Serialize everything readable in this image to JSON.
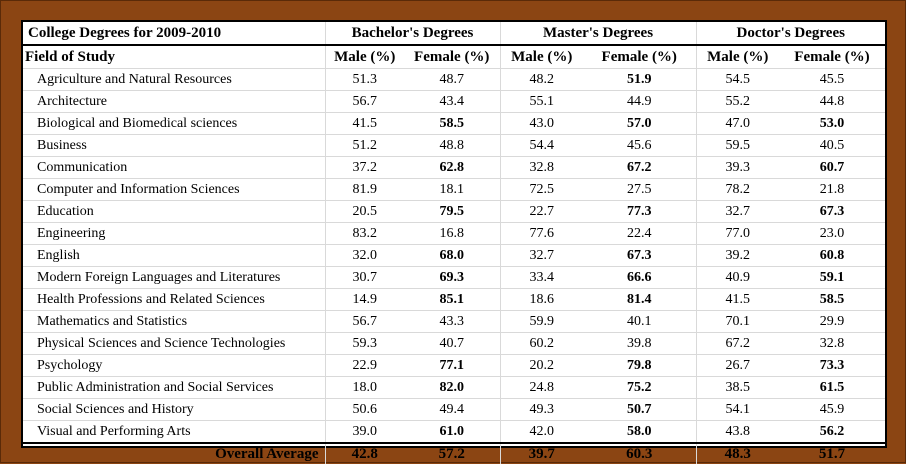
{
  "table": {
    "title": "College Degrees for 2009-2010",
    "groups": [
      "Bachelor's Degrees",
      "Master's Degrees",
      "Doctor's Degrees"
    ],
    "field_header": "Field of Study",
    "subheaders": [
      "Male (%)",
      "Female (%)",
      "Male (%)",
      "Female (%)",
      "Male (%)",
      "Female (%)"
    ],
    "rows": [
      {
        "field": "Agriculture and Natural Resources",
        "values": [
          "51.3",
          "48.7",
          "48.2",
          "51.9",
          "54.5",
          "45.5"
        ]
      },
      {
        "field": "Architecture",
        "values": [
          "56.7",
          "43.4",
          "55.1",
          "44.9",
          "55.2",
          "44.8"
        ]
      },
      {
        "field": "Biological and Biomedical sciences",
        "values": [
          "41.5",
          "58.5",
          "43.0",
          "57.0",
          "47.0",
          "53.0"
        ]
      },
      {
        "field": "Business",
        "values": [
          "51.2",
          "48.8",
          "54.4",
          "45.6",
          "59.5",
          "40.5"
        ]
      },
      {
        "field": "Communication",
        "values": [
          "37.2",
          "62.8",
          "32.8",
          "67.2",
          "39.3",
          "60.7"
        ]
      },
      {
        "field": "Computer and Information Sciences",
        "values": [
          "81.9",
          "18.1",
          "72.5",
          "27.5",
          "78.2",
          "21.8"
        ]
      },
      {
        "field": "Education",
        "values": [
          "20.5",
          "79.5",
          "22.7",
          "77.3",
          "32.7",
          "67.3"
        ]
      },
      {
        "field": "Engineering",
        "values": [
          "83.2",
          "16.8",
          "77.6",
          "22.4",
          "77.0",
          "23.0"
        ]
      },
      {
        "field": "English",
        "values": [
          "32.0",
          "68.0",
          "32.7",
          "67.3",
          "39.2",
          "60.8"
        ]
      },
      {
        "field": "Modern Foreign Languages and Literatures",
        "values": [
          "30.7",
          "69.3",
          "33.4",
          "66.6",
          "40.9",
          "59.1"
        ]
      },
      {
        "field": "Health Professions and Related Sciences",
        "values": [
          "14.9",
          "85.1",
          "18.6",
          "81.4",
          "41.5",
          "58.5"
        ]
      },
      {
        "field": "Mathematics and Statistics",
        "values": [
          "56.7",
          "43.3",
          "59.9",
          "40.1",
          "70.1",
          "29.9"
        ]
      },
      {
        "field": "Physical Sciences and Science Technologies",
        "values": [
          "59.3",
          "40.7",
          "60.2",
          "39.8",
          "67.2",
          "32.8"
        ]
      },
      {
        "field": "Psychology",
        "values": [
          "22.9",
          "77.1",
          "20.2",
          "79.8",
          "26.7",
          "73.3"
        ]
      },
      {
        "field": "Public Administration and Social Services",
        "values": [
          "18.0",
          "82.0",
          "24.8",
          "75.2",
          "38.5",
          "61.5"
        ]
      },
      {
        "field": "Social Sciences and History",
        "values": [
          "50.6",
          "49.4",
          "49.3",
          "50.7",
          "54.1",
          "45.9"
        ]
      },
      {
        "field": "Visual and Performing Arts",
        "values": [
          "39.0",
          "61.0",
          "42.0",
          "58.0",
          "43.8",
          "56.2"
        ]
      }
    ],
    "total_label": "Overall Average",
    "total_values": [
      "42.8",
      "57.2",
      "39.7",
      "60.3",
      "48.3",
      "51.7"
    ]
  }
}
